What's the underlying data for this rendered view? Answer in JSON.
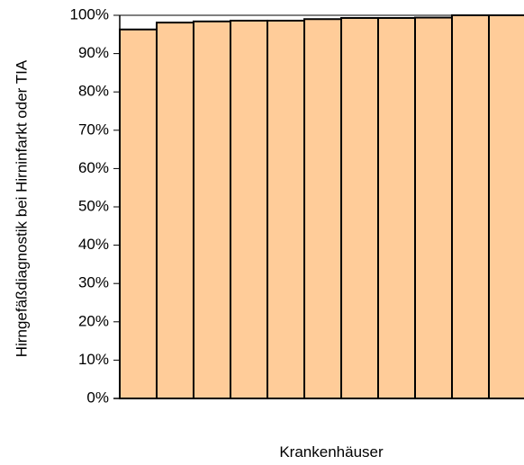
{
  "chart_data": {
    "type": "bar",
    "title": "",
    "xlabel": "Krankenhäuser",
    "ylabel": "Hirngefäßdiagnostik bei Hirninfarkt oder TIA",
    "ylim": [
      0,
      100
    ],
    "yticks": [
      "0%",
      "10%",
      "20%",
      "30%",
      "40%",
      "50%",
      "60%",
      "70%",
      "80%",
      "90%",
      "100%"
    ],
    "values": [
      96.3,
      98.1,
      98.4,
      98.6,
      98.6,
      99.0,
      99.3,
      99.3,
      99.4,
      100,
      100
    ],
    "grid": false,
    "legend": "none",
    "colors": {
      "bar_fill": "#FFCC99",
      "bar_stroke": "#000000",
      "axis": "#000000"
    }
  }
}
